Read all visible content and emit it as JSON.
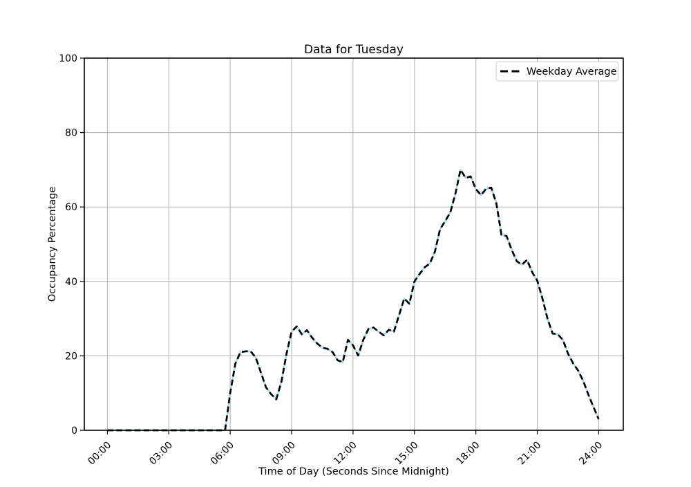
{
  "figure": {
    "background_color": "#ffffff"
  },
  "chart_data": {
    "type": "line",
    "title": "Data for Tuesday",
    "xlabel": "Time of Day (Seconds Since Midnight)",
    "ylabel": "Occupancy Percentage",
    "ylim": [
      0,
      100
    ],
    "yticks": [
      0,
      20,
      40,
      60,
      80,
      100
    ],
    "xlim_seconds": [
      0,
      86400
    ],
    "xticks": [
      {
        "seconds": 0,
        "label": "00:00"
      },
      {
        "seconds": 10800,
        "label": "03:00"
      },
      {
        "seconds": 21600,
        "label": "06:00"
      },
      {
        "seconds": 32400,
        "label": "09:00"
      },
      {
        "seconds": 43200,
        "label": "12:00"
      },
      {
        "seconds": 54000,
        "label": "15:00"
      },
      {
        "seconds": 64800,
        "label": "18:00"
      },
      {
        "seconds": 75600,
        "label": "21:00"
      },
      {
        "seconds": 86400,
        "label": "24:00"
      }
    ],
    "x_tick_label_rotation_deg": 45,
    "grid": true,
    "grid_color": "#b0b0b0",
    "legend": {
      "position": "upper-right",
      "entries": [
        {
          "label": "Weekday Average",
          "line_style": "dashed",
          "color": "#000000"
        }
      ]
    },
    "series": [
      {
        "name": "solid-underlay-line",
        "color": "#add8e6",
        "line_style": "solid",
        "width": 2.6,
        "in_legend": false
      },
      {
        "name": "Weekday Average",
        "color": "#000000",
        "line_style": "dashed",
        "width": 2.7,
        "in_legend": true
      }
    ],
    "x_step_seconds": 900,
    "times": [
      "00:00",
      "00:15",
      "00:30",
      "00:45",
      "01:00",
      "01:15",
      "01:30",
      "01:45",
      "02:00",
      "02:15",
      "02:30",
      "02:45",
      "03:00",
      "03:15",
      "03:30",
      "03:45",
      "04:00",
      "04:15",
      "04:30",
      "04:45",
      "05:00",
      "05:15",
      "05:30",
      "05:45",
      "06:00",
      "06:15",
      "06:30",
      "06:45",
      "07:00",
      "07:15",
      "07:30",
      "07:45",
      "08:00",
      "08:15",
      "08:30",
      "08:45",
      "09:00",
      "09:15",
      "09:30",
      "09:45",
      "10:00",
      "10:15",
      "10:30",
      "10:45",
      "11:00",
      "11:15",
      "11:30",
      "11:45",
      "12:00",
      "12:15",
      "12:30",
      "12:45",
      "13:00",
      "13:15",
      "13:30",
      "13:45",
      "14:00",
      "14:15",
      "14:30",
      "14:45",
      "15:00",
      "15:15",
      "15:30",
      "15:45",
      "16:00",
      "16:15",
      "16:30",
      "16:45",
      "17:00",
      "17:15",
      "17:30",
      "17:45",
      "18:00",
      "18:15",
      "18:30",
      "18:45",
      "19:00",
      "19:15",
      "19:30",
      "19:45",
      "20:00",
      "20:15",
      "20:30",
      "20:45",
      "21:00",
      "21:15",
      "21:30",
      "21:45",
      "22:00",
      "22:15",
      "22:30",
      "22:45",
      "23:00",
      "23:15",
      "23:30",
      "23:45",
      "24:00"
    ],
    "values": [
      0,
      0,
      0,
      0,
      0,
      0,
      0,
      0,
      0,
      0,
      0,
      0,
      0,
      0,
      0,
      0,
      0,
      0,
      0,
      0,
      0,
      0,
      0,
      0,
      10,
      17.9,
      21,
      21.2,
      21.2,
      19.5,
      15.5,
      11.5,
      9.7,
      8.3,
      13,
      20.5,
      26.5,
      27.9,
      25.8,
      26.9,
      24.9,
      23.3,
      22.2,
      21.9,
      21,
      18.8,
      18.3,
      24.3,
      22.8,
      20.1,
      24.3,
      27.2,
      27.6,
      26.5,
      25.5,
      27,
      26.5,
      31,
      35.4,
      34,
      40,
      42,
      43.8,
      44.8,
      48,
      54,
      56.2,
      58.5,
      63.5,
      70,
      67.8,
      68.2,
      64.8,
      63.2,
      64.9,
      65.2,
      61,
      52.5,
      52.2,
      48.5,
      45.4,
      44.5,
      45.8,
      42.5,
      40.2,
      35.5,
      30,
      26,
      25.8,
      24.3,
      20.6,
      18,
      16,
      13.2,
      9.5,
      6.2,
      3
    ]
  }
}
